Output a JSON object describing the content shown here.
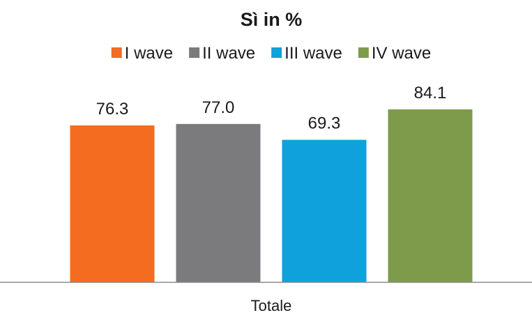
{
  "chart_data": {
    "type": "bar",
    "title": "Sì in %",
    "categories": [
      "Totale"
    ],
    "series": [
      {
        "name": "I wave",
        "values": [
          76.3
        ],
        "color": "#F46C1F"
      },
      {
        "name": "II wave",
        "values": [
          77.0
        ],
        "color": "#7B7B7E"
      },
      {
        "name": "III wave",
        "values": [
          69.3
        ],
        "color": "#0FA1DB"
      },
      {
        "name": "IV wave",
        "values": [
          84.1
        ],
        "color": "#7E9B4C"
      }
    ],
    "data_labels": [
      "76.3",
      "77.0",
      "69.3",
      "84.1"
    ],
    "xlabel": "",
    "ylabel": "",
    "ylim": [
      0,
      100
    ],
    "grid": false,
    "legend": "top"
  }
}
